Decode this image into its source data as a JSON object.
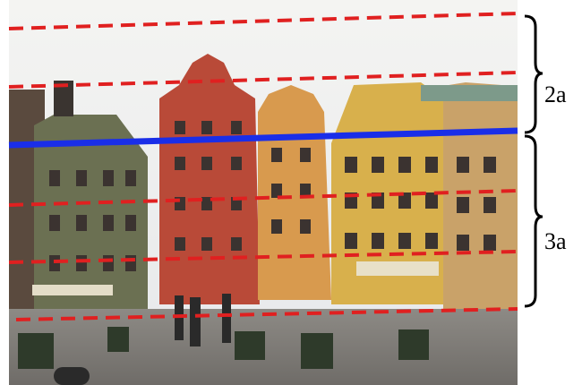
{
  "annotations": {
    "upper_label": "2a",
    "lower_label": "3a"
  }
}
